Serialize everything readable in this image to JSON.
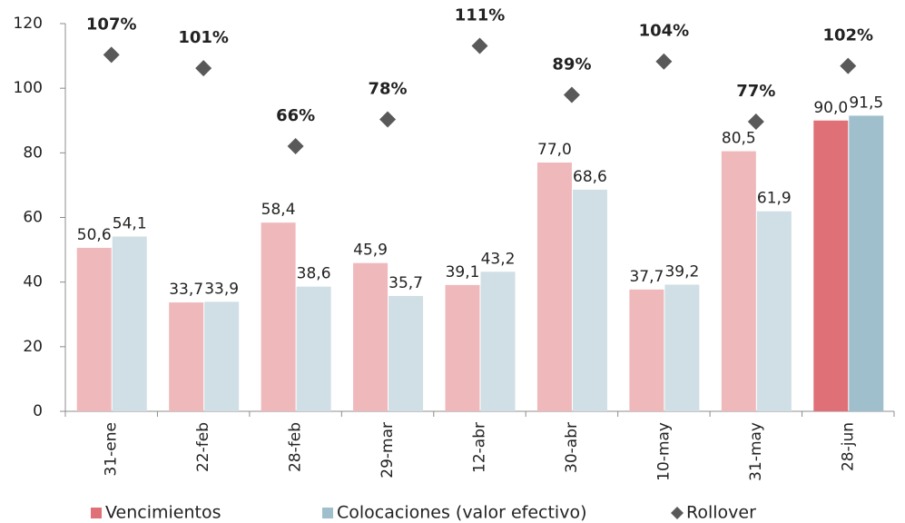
{
  "chart_data": {
    "type": "bar",
    "categories": [
      "31-ene",
      "22-feb",
      "28-feb",
      "29-mar",
      "12-abr",
      "30-abr",
      "10-may",
      "31-may",
      "28-jun"
    ],
    "ylim": [
      0,
      120
    ],
    "yticks": [
      0,
      20,
      40,
      60,
      80,
      100,
      120
    ],
    "y2lim": [
      -53,
      121
    ],
    "series": [
      {
        "name": "Vencimientos",
        "color": "#e07078",
        "colors": [
          "#efb9bc",
          "#efb9bc",
          "#efb9bc",
          "#efb9bc",
          "#efb9bc",
          "#efb9bc",
          "#efb9bc",
          "#efb9bc",
          "#e07078"
        ],
        "values": [
          50.6,
          33.7,
          58.4,
          45.9,
          39.1,
          77.0,
          37.7,
          80.5,
          90.0
        ],
        "value_labels": [
          "50,6",
          "33,7",
          "58,4",
          "45,9",
          "39,1",
          "77,0",
          "37,7",
          "80,5",
          "90,0"
        ]
      },
      {
        "name": "Colocaciones (valor efectivo)",
        "color": "#9fbfcc",
        "colors": [
          "#d0dfe5",
          "#d0dfe5",
          "#d0dfe5",
          "#d0dfe5",
          "#d0dfe5",
          "#d0dfe5",
          "#d0dfe5",
          "#d0dfe5",
          "#9fbfcc"
        ],
        "values": [
          54.1,
          33.9,
          38.6,
          35.7,
          43.2,
          68.6,
          39.2,
          61.9,
          91.5
        ],
        "value_labels": [
          "54,1",
          "33,9",
          "38,6",
          "35,7",
          "43,2",
          "68,6",
          "39,2",
          "61,9",
          "91,5"
        ]
      },
      {
        "name": "Rollover",
        "color": "#595959",
        "type": "scatter",
        "axis": "y2",
        "marker": "diamond",
        "values": [
          107,
          101,
          66,
          78,
          111,
          89,
          104,
          77,
          102
        ],
        "value_labels": [
          "107%",
          "101%",
          "66%",
          "78%",
          "111%",
          "89%",
          "104%",
          "77%",
          "102%"
        ]
      }
    ]
  }
}
